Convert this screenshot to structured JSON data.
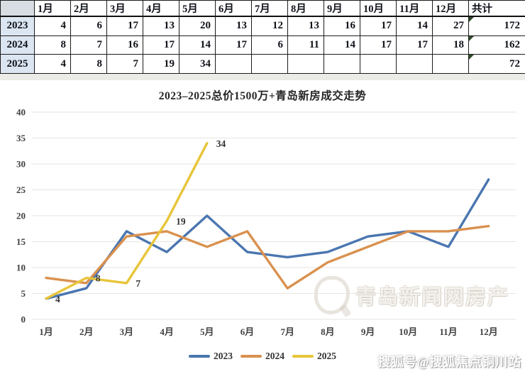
{
  "table": {
    "header": [
      "",
      "1月",
      "2月",
      "3月",
      "4月",
      "5月",
      "6月",
      "7月",
      "8月",
      "9月",
      "10月",
      "11月",
      "12月",
      "共计"
    ],
    "rows": [
      {
        "label": "2023",
        "values": [
          "4",
          "6",
          "17",
          "13",
          "20",
          "13",
          "12",
          "13",
          "16",
          "17",
          "14",
          "27"
        ],
        "total": "172"
      },
      {
        "label": "2024",
        "values": [
          "8",
          "7",
          "16",
          "17",
          "14",
          "17",
          "6",
          "11",
          "14",
          "17",
          "17",
          "18"
        ],
        "total": "162"
      },
      {
        "label": "2025",
        "values": [
          "4",
          "8",
          "7",
          "19",
          "34",
          "",
          "",
          "",
          "",
          "",
          "",
          ""
        ],
        "total": "72"
      }
    ]
  },
  "chart_data": {
    "type": "line",
    "title": "2023–2025总价1500万+青岛新房成交走势",
    "categories": [
      "1月",
      "2月",
      "3月",
      "4月",
      "5月",
      "6月",
      "7月",
      "8月",
      "9月",
      "10月",
      "11月",
      "12月"
    ],
    "series": [
      {
        "name": "2023",
        "color": "#4a76b0",
        "values": [
          4,
          6,
          17,
          13,
          20,
          13,
          12,
          13,
          16,
          17,
          14,
          27
        ]
      },
      {
        "name": "2024",
        "color": "#d9914f",
        "values": [
          8,
          7,
          16,
          17,
          14,
          17,
          6,
          11,
          14,
          17,
          17,
          18
        ]
      },
      {
        "name": "2025",
        "color": "#e8c53a",
        "values": [
          4,
          8,
          7,
          19,
          34
        ],
        "data_labels": true
      }
    ],
    "ylim": [
      0,
      40
    ],
    "ytick_step": 5,
    "grid": true,
    "legend_position": "bottom",
    "text_color": "#404040",
    "grid_color": "#e7e5e1"
  },
  "watermarks": {
    "chart_logo": "q-circle-logo",
    "chart": "青岛新闻网房产",
    "footer": "搜狐号@搜狐焦点铜川站"
  }
}
